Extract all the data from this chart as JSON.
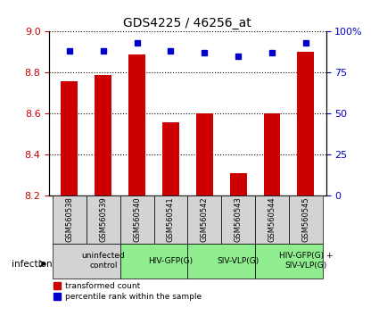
{
  "title": "GDS4225 / 46256_at",
  "samples": [
    "GSM560538",
    "GSM560539",
    "GSM560540",
    "GSM560541",
    "GSM560542",
    "GSM560543",
    "GSM560544",
    "GSM560545"
  ],
  "transformed_counts": [
    8.76,
    8.79,
    8.89,
    8.56,
    8.6,
    8.31,
    8.6,
    8.9
  ],
  "percentile_ranks": [
    88,
    88,
    93,
    88,
    87,
    85,
    87,
    93
  ],
  "ylim_left": [
    8.2,
    9.0
  ],
  "ylim_right": [
    0,
    100
  ],
  "yticks_left": [
    8.2,
    8.4,
    8.6,
    8.8,
    9.0
  ],
  "yticks_right": [
    0,
    25,
    50,
    75,
    100
  ],
  "yticklabels_right": [
    "0",
    "25",
    "50",
    "75",
    "100%"
  ],
  "bar_color": "#cc0000",
  "dot_color": "#0000cc",
  "grid_color": "#000000",
  "groups": [
    {
      "label": "uninfected\ncontrol",
      "start": 0,
      "end": 2,
      "color": "#d3d3d3"
    },
    {
      "label": "HIV-GFP(G)",
      "start": 2,
      "end": 4,
      "color": "#90ee90"
    },
    {
      "label": "SIV-VLP(G)",
      "start": 4,
      "end": 6,
      "color": "#90ee90"
    },
    {
      "label": "HIV-GFP(G) +\nSIV-VLP(G)",
      "start": 6,
      "end": 8,
      "color": "#90ee90"
    }
  ],
  "legend_items": [
    {
      "color": "#cc0000",
      "label": "transformed count"
    },
    {
      "color": "#0000cc",
      "label": "percentile rank within the sample"
    }
  ],
  "infection_label": "infection",
  "xlabel_color": "#cc0000",
  "ylabel_left_color": "#cc0000",
  "ylabel_right_color": "#0000cc",
  "sample_box_color": "#d3d3d3",
  "sample_box_border": "#000000"
}
